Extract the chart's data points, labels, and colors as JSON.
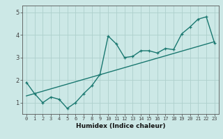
{
  "xlabel": "Humidex (Indice chaleur)",
  "ylabel": "",
  "bg_color": "#cce8e6",
  "line_color": "#1a7870",
  "grid_color": "#aed0cc",
  "xlim": [
    -0.5,
    23.5
  ],
  "ylim": [
    0.5,
    5.3
  ],
  "yticks": [
    1,
    2,
    3,
    4,
    5
  ],
  "xticks": [
    0,
    1,
    2,
    3,
    4,
    5,
    6,
    7,
    8,
    9,
    10,
    11,
    12,
    13,
    14,
    15,
    16,
    17,
    18,
    19,
    20,
    21,
    22,
    23
  ],
  "zigzag_x": [
    0,
    1,
    2,
    3,
    4,
    5,
    6,
    7,
    8,
    9,
    10,
    11,
    12,
    13,
    14,
    15,
    16,
    17,
    18,
    19,
    20,
    21,
    22,
    23
  ],
  "zigzag_y": [
    1.9,
    1.4,
    1.0,
    1.25,
    1.15,
    0.75,
    1.0,
    1.4,
    1.75,
    2.25,
    3.95,
    3.6,
    3.0,
    3.05,
    3.3,
    3.3,
    3.2,
    3.4,
    3.35,
    4.05,
    4.35,
    4.7,
    4.8,
    3.65
  ],
  "trend_x": [
    0,
    23
  ],
  "trend_y": [
    1.3,
    3.7
  ],
  "marker_size": 3,
  "linewidth": 1.0
}
